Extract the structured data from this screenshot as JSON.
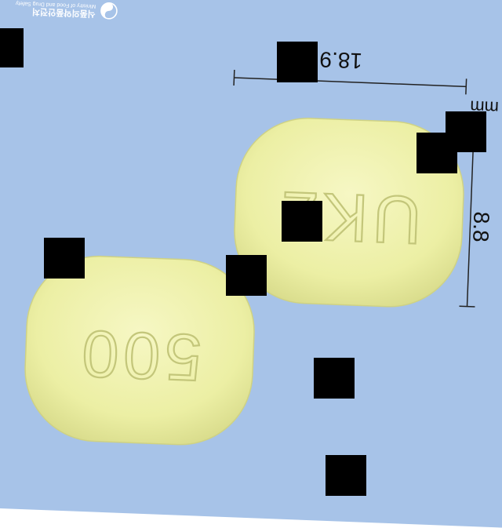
{
  "logo": {
    "icon": "mfds-emblem-icon",
    "korean": "식품의약품안전처",
    "english": "Ministry of Food and Drug Safety"
  },
  "dimensions": {
    "length": "18.9",
    "width": "8.8",
    "unit": "mm"
  },
  "tablets": [
    {
      "imprint": "UK2",
      "color": "#eef0a8"
    },
    {
      "imprint": "500",
      "color": "#eef0a8"
    }
  ],
  "colors": {
    "background": "#a7c3e8",
    "tablet": "#eef0a8",
    "redaction": "#000000"
  }
}
